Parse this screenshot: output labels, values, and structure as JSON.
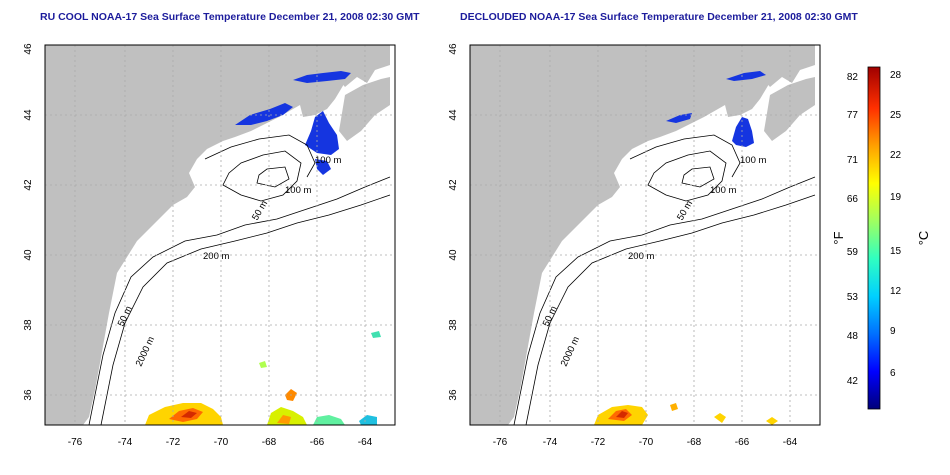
{
  "panels": [
    {
      "title": "RU COOL NOAA-17 Sea Surface Temperature December 21, 2008 02:30 GMT",
      "x_ticks": [
        "-76",
        "-74",
        "-72",
        "-70",
        "-68",
        "-66",
        "-64"
      ],
      "y_ticks": [
        "36",
        "38",
        "40",
        "42",
        "44",
        "46"
      ],
      "contour_labels": [
        "100 m",
        "100 m",
        "50 m",
        "200 m",
        "50 m",
        "2000 m"
      ]
    },
    {
      "title": "DECLOUDED NOAA-17 Sea Surface Temperature December 21, 2008 02:30 GMT",
      "x_ticks": [
        "-76",
        "-74",
        "-72",
        "-70",
        "-68",
        "-66",
        "-64"
      ],
      "y_ticks": [
        "36",
        "38",
        "40",
        "42",
        "44",
        "46"
      ],
      "contour_labels": [
        "100 m",
        "100 m",
        "50 m",
        "200 m",
        "50 m",
        "2000 m"
      ]
    }
  ],
  "colorbar": {
    "fahrenheit_label": "°F",
    "celsius_label": "°C",
    "fahrenheit_ticks": [
      "82",
      "77",
      "71",
      "66",
      "59",
      "53",
      "48",
      "42"
    ],
    "celsius_ticks": [
      "28",
      "25",
      "22",
      "19",
      "15",
      "12",
      "9",
      "6"
    ],
    "colors": [
      "#00007a",
      "#0000ff",
      "#0070ff",
      "#00d0ff",
      "#30ffc0",
      "#a0ff60",
      "#ffff00",
      "#ffa000",
      "#ff3000",
      "#a00000"
    ]
  },
  "colors": {
    "land": "#c0c0c0",
    "sea": "#ffffff",
    "title": "#1c1c9c",
    "cold_water": "#1535e0",
    "grid": "#aaaaaa"
  }
}
